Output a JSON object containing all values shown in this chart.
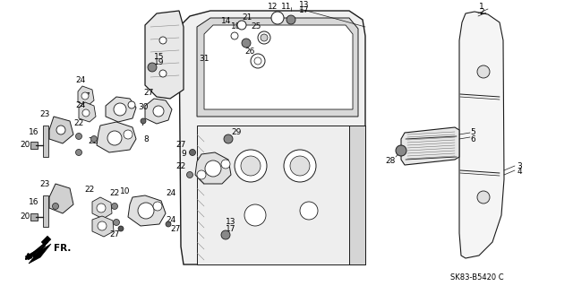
{
  "bg_color": "#ffffff",
  "diagram_code": "SK83-B5420 C",
  "font_size": 6.5,
  "line_color": "#1a1a1a",
  "gray": "#888888",
  "light_gray": "#cccccc",
  "mid_gray": "#aaaaaa"
}
